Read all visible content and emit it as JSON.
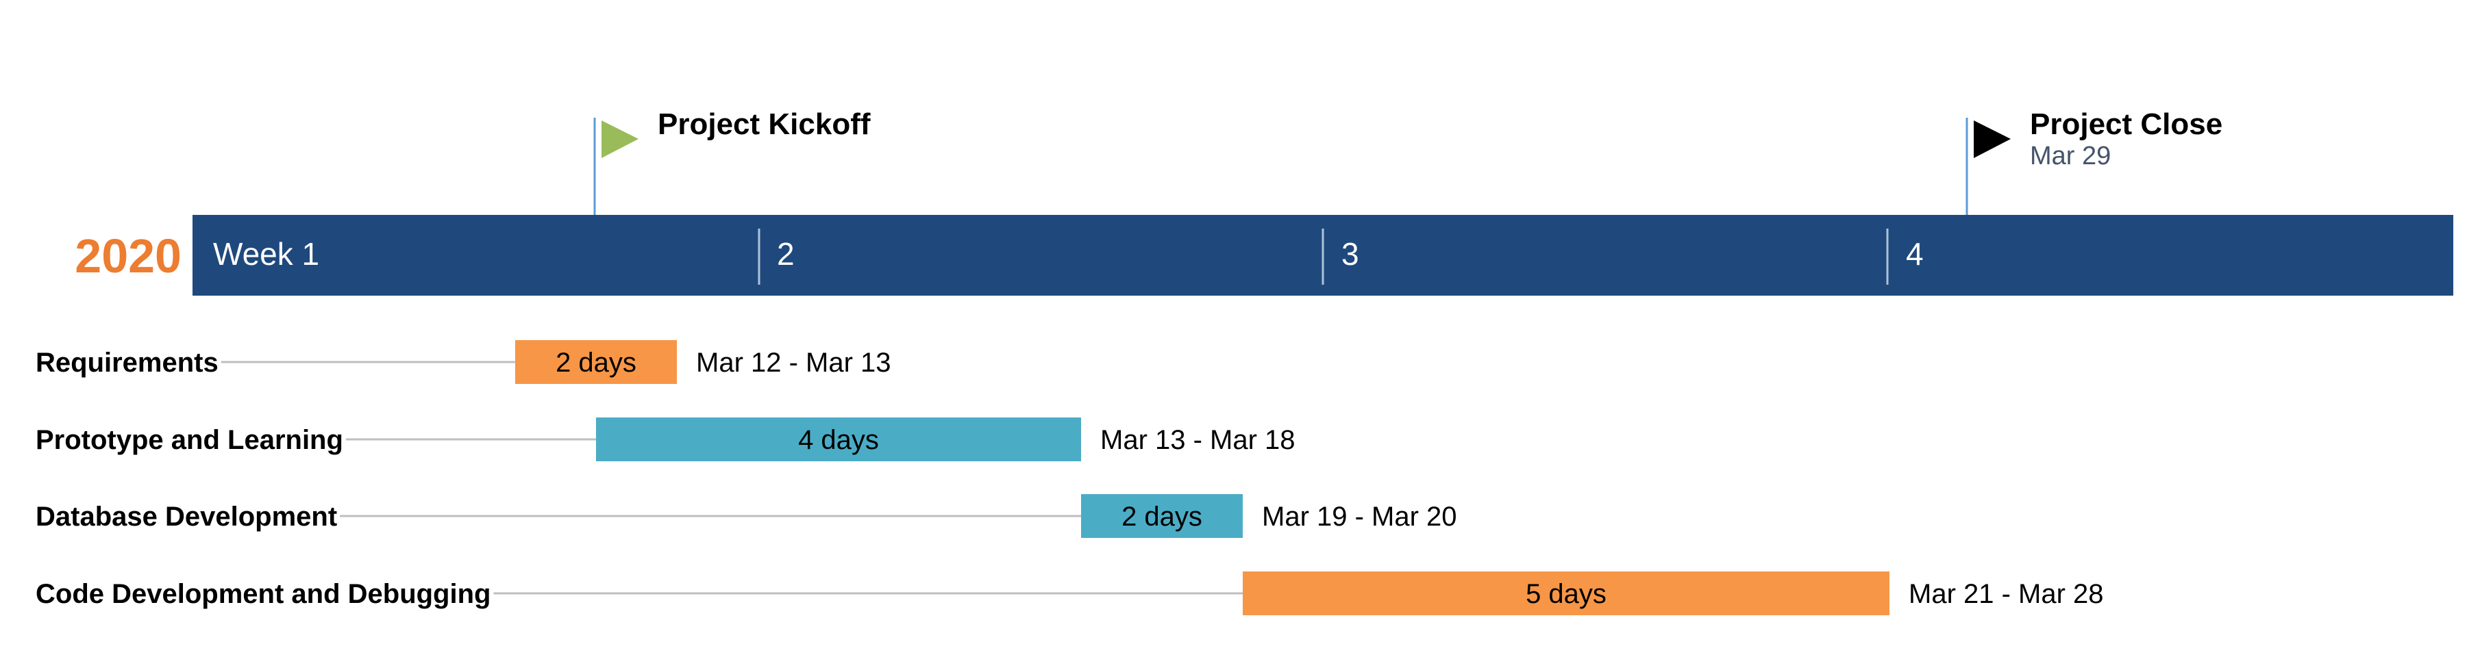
{
  "chart_data": {
    "type": "gantt",
    "year_label": "2020",
    "weeks": [
      "Week 1",
      "2",
      "3",
      "4"
    ],
    "milestones": [
      {
        "name": "Project Kickoff",
        "date_label": "",
        "date": "2020-03-13",
        "flag_color": "#9ABB59"
      },
      {
        "name": "Project Close",
        "date_label": "Mar 29",
        "date": "2020-03-29",
        "flag_color": "#000000"
      }
    ],
    "tasks": [
      {
        "name": "Requirements",
        "start": "2020-03-12",
        "end": "2020-03-13",
        "duration_label": "2 days",
        "date_label": "Mar 12 - Mar 13",
        "color": "#F79646"
      },
      {
        "name": "Prototype and Learning",
        "start": "2020-03-13",
        "end": "2020-03-18",
        "duration_label": "4 days",
        "date_label": "Mar 13 - Mar 18",
        "color": "#4BACC6"
      },
      {
        "name": "Database Development",
        "start": "2020-03-19",
        "end": "2020-03-20",
        "duration_label": "2 days",
        "date_label": "Mar 19 - Mar 20",
        "color": "#4BACC6"
      },
      {
        "name": "Code Development and Debugging",
        "start": "2020-03-21",
        "end": "2020-03-28",
        "duration_label": "5 days",
        "date_label": "Mar 21 - Mar 28",
        "color": "#F79646"
      }
    ],
    "colors": {
      "timeline_band": "#1F497D",
      "year_text": "#ED7D31",
      "milestone_line": "#5B9BD5",
      "milestone_date_text": "#44546A",
      "connector_line": "#BFBFBF"
    }
  }
}
